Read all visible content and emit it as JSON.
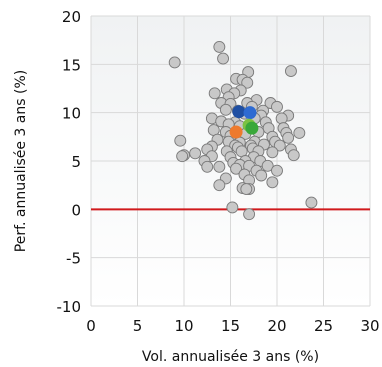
{
  "chart_data": {
    "type": "scatter",
    "title": "",
    "xlabel": "Vol. annualisée 3 ans (%)",
    "ylabel": "Perf. annualisée 3 ans (%)",
    "xlim": [
      0,
      30
    ],
    "ylim": [
      -10,
      20
    ],
    "xticks": [
      "0",
      "5",
      "10",
      "15",
      "20",
      "25",
      "30"
    ],
    "yticks": [
      "-10",
      "-5",
      "0",
      "5",
      "10",
      "15",
      "20"
    ],
    "grid": true,
    "reference_line": {
      "y": 0,
      "color": "#d0191c"
    },
    "colors": {
      "plot_bg_top": "#f0f2f3",
      "plot_bg_bottom": "#ffffff",
      "grid": "#d9d9d9",
      "point_fill": "#c8c8c8",
      "point_stroke": "#7a7a7a"
    },
    "series": [
      {
        "color": "#c8c8c8",
        "points": [
          [
            9.0,
            15.2
          ],
          [
            13.8,
            16.8
          ],
          [
            14.2,
            15.6
          ],
          [
            21.5,
            14.3
          ],
          [
            16.9,
            14.2
          ],
          [
            15.6,
            13.5
          ],
          [
            16.3,
            13.4
          ],
          [
            16.8,
            13.1
          ],
          [
            14.6,
            12.4
          ],
          [
            16.1,
            12.3
          ],
          [
            13.3,
            12.0
          ],
          [
            15.4,
            12.0
          ],
          [
            14.8,
            11.6
          ],
          [
            17.8,
            11.3
          ],
          [
            14.0,
            11.0
          ],
          [
            15.0,
            10.9
          ],
          [
            16.8,
            11.0
          ],
          [
            19.3,
            11.0
          ],
          [
            17.3,
            10.6
          ],
          [
            20.0,
            10.6
          ],
          [
            14.5,
            10.3
          ],
          [
            15.8,
            10.2
          ],
          [
            18.5,
            10.2
          ],
          [
            16.5,
            9.9
          ],
          [
            18.3,
            9.7
          ],
          [
            21.2,
            9.7
          ],
          [
            13.0,
            9.4
          ],
          [
            17.6,
            9.4
          ],
          [
            20.5,
            9.4
          ],
          [
            14.0,
            9.1
          ],
          [
            15.5,
            9.0
          ],
          [
            18.8,
            9.0
          ],
          [
            14.8,
            8.8
          ],
          [
            16.0,
            8.6
          ],
          [
            17.0,
            8.4
          ],
          [
            19.1,
            8.4
          ],
          [
            20.7,
            8.4
          ],
          [
            13.2,
            8.2
          ],
          [
            14.5,
            8.0
          ],
          [
            18.0,
            8.0
          ],
          [
            21.0,
            7.9
          ],
          [
            22.4,
            7.9
          ],
          [
            16.6,
            7.8
          ],
          [
            15.0,
            7.6
          ],
          [
            19.5,
            7.5
          ],
          [
            21.2,
            7.4
          ],
          [
            13.6,
            7.2
          ],
          [
            14.8,
            7.0
          ],
          [
            17.6,
            7.0
          ],
          [
            19.8,
            7.0
          ],
          [
            9.6,
            7.1
          ],
          [
            16.0,
            6.9
          ],
          [
            18.6,
            6.7
          ],
          [
            15.5,
            6.6
          ],
          [
            17.2,
            6.6
          ],
          [
            20.3,
            6.6
          ],
          [
            13.0,
            6.5
          ],
          [
            15.8,
            6.4
          ],
          [
            17.4,
            6.3
          ],
          [
            21.5,
            6.2
          ],
          [
            12.5,
            6.2
          ],
          [
            14.6,
            6.0
          ],
          [
            16.2,
            6.0
          ],
          [
            18.0,
            6.0
          ],
          [
            19.5,
            5.9
          ],
          [
            11.2,
            5.8
          ],
          [
            10.0,
            5.6
          ],
          [
            9.8,
            5.5
          ],
          [
            13.0,
            5.5
          ],
          [
            15.0,
            5.4
          ],
          [
            17.5,
            5.4
          ],
          [
            21.8,
            5.6
          ],
          [
            12.2,
            5.0
          ],
          [
            16.6,
            5.0
          ],
          [
            18.2,
            5.0
          ],
          [
            15.3,
            4.8
          ],
          [
            16.0,
            4.6
          ],
          [
            17.0,
            4.5
          ],
          [
            19.0,
            4.5
          ],
          [
            13.8,
            4.4
          ],
          [
            12.5,
            4.4
          ],
          [
            15.6,
            4.2
          ],
          [
            17.8,
            4.0
          ],
          [
            20.0,
            4.0
          ],
          [
            16.5,
            3.6
          ],
          [
            18.3,
            3.5
          ],
          [
            14.5,
            3.2
          ],
          [
            17.0,
            3.0
          ],
          [
            19.5,
            2.8
          ],
          [
            13.8,
            2.5
          ],
          [
            16.3,
            2.2
          ],
          [
            17.0,
            2.1
          ],
          [
            16.7,
            2.1
          ],
          [
            23.7,
            0.7
          ],
          [
            15.2,
            0.2
          ],
          [
            17.0,
            -0.5
          ]
        ]
      },
      {
        "color": "#1f4fa3",
        "points": [
          [
            15.9,
            10.1
          ]
        ]
      },
      {
        "color": "#2e6bd2",
        "points": [
          [
            17.1,
            10.0
          ]
        ]
      },
      {
        "color": "#ee7a2d",
        "points": [
          [
            15.6,
            8.0
          ]
        ]
      },
      {
        "color": "#7cc243",
        "points": [
          [
            17.0,
            8.7
          ]
        ]
      },
      {
        "color": "#3aa83a",
        "points": [
          [
            17.3,
            8.4
          ]
        ]
      }
    ]
  }
}
